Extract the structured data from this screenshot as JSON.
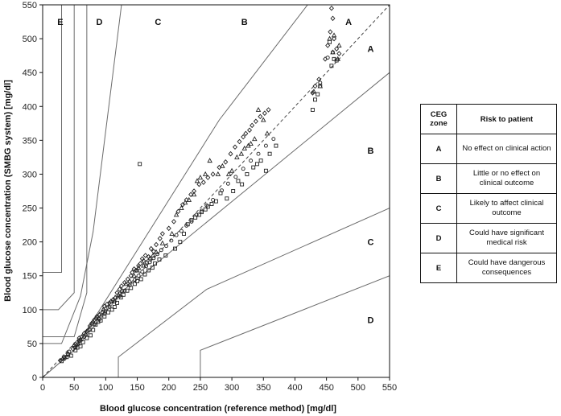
{
  "chart_data": {
    "type": "scatter",
    "title": "",
    "xlabel": "Blood glucose concentration (reference method)  [mg/dl]",
    "ylabel": "Blood glucose concentration (SMBG system) [mg/dl]",
    "xlim": [
      0,
      550
    ],
    "ylim": [
      0,
      550
    ],
    "x_ticks": [
      "0",
      "50",
      "100",
      "150",
      "200",
      "250",
      "300",
      "350",
      "400",
      "450",
      "500",
      "550"
    ],
    "y_ticks": [
      "0",
      "50",
      "100",
      "150",
      "200",
      "250",
      "300",
      "350",
      "400",
      "450",
      "500",
      "550"
    ],
    "grid": false,
    "identity_line": {
      "style": "dashed",
      "from": [
        0,
        0
      ],
      "to": [
        550,
        550
      ]
    },
    "zone_boundaries": [
      {
        "points": [
          [
            30,
            550
          ],
          [
            30,
            155
          ],
          [
            0,
            155
          ]
        ]
      },
      {
        "points": [
          [
            50,
            550
          ],
          [
            50,
            125
          ],
          [
            25,
            100
          ],
          [
            0,
            100
          ]
        ]
      },
      {
        "points": [
          [
            73,
            550
          ],
          [
            70,
            550
          ],
          [
            70,
            125
          ],
          [
            50,
            60
          ],
          [
            0,
            60
          ]
        ]
      },
      {
        "points": [
          [
            125,
            550
          ],
          [
            80,
            215
          ],
          [
            60,
            120
          ],
          [
            30,
            50
          ],
          [
            0,
            50
          ]
        ]
      },
      {
        "points": [
          [
            0,
            0
          ],
          [
            50,
            40
          ],
          [
            280,
            380
          ],
          [
            420,
            550
          ]
        ]
      },
      {
        "points": [
          [
            0,
            0
          ],
          [
            50,
            40
          ],
          [
            130,
            130
          ],
          [
            550,
            450
          ]
        ]
      },
      {
        "points": [
          [
            120,
            0
          ],
          [
            120,
            30
          ],
          [
            260,
            130
          ],
          [
            550,
            250
          ]
        ]
      },
      {
        "points": [
          [
            250,
            0
          ],
          [
            250,
            40
          ],
          [
            550,
            150
          ]
        ]
      }
    ],
    "zone_labels": [
      {
        "text": "E",
        "x": 28,
        "y": 525
      },
      {
        "text": "D",
        "x": 90,
        "y": 525
      },
      {
        "text": "C",
        "x": 183,
        "y": 525
      },
      {
        "text": "B",
        "x": 320,
        "y": 525
      },
      {
        "text": "A",
        "x": 485,
        "y": 525
      },
      {
        "text": "A",
        "x": 520,
        "y": 485
      },
      {
        "text": "B",
        "x": 520,
        "y": 335
      },
      {
        "text": "C",
        "x": 520,
        "y": 200
      },
      {
        "text": "D",
        "x": 520,
        "y": 85
      }
    ],
    "series": [
      {
        "marker": "diamond",
        "x": [
          28,
          35,
          40,
          48,
          52,
          55,
          58,
          62,
          66,
          70,
          75,
          78,
          82,
          86,
          90,
          95,
          98,
          102,
          106,
          112,
          118,
          122,
          125,
          130,
          135,
          140,
          142,
          145,
          148,
          152,
          155,
          158,
          160,
          163,
          168,
          172,
          176,
          180,
          186,
          190,
          200,
          208,
          215,
          222,
          228,
          235,
          240,
          248,
          255,
          262,
          270,
          280,
          290,
          298,
          305,
          312,
          318,
          322,
          328,
          332,
          338,
          345,
          352,
          358,
          428,
          432,
          438,
          448,
          452,
          456,
          458,
          460,
          462,
          466,
          470
        ],
        "y": [
          25,
          28,
          35,
          42,
          45,
          52,
          58,
          60,
          65,
          68,
          76,
          80,
          85,
          90,
          92,
          96,
          105,
          108,
          110,
          115,
          125,
          130,
          135,
          140,
          145,
          150,
          155,
          160,
          158,
          165,
          168,
          175,
          172,
          180,
          178,
          190,
          186,
          196,
          205,
          212,
          220,
          230,
          245,
          255,
          262,
          270,
          275,
          285,
          288,
          295,
          300,
          310,
          318,
          330,
          340,
          348,
          355,
          360,
          365,
          372,
          378,
          385,
          390,
          395,
          420,
          430,
          440,
          470,
          490,
          510,
          545,
          530,
          500,
          485,
          478
        ]
      },
      {
        "marker": "triangle",
        "x": [
          32,
          40,
          50,
          56,
          60,
          68,
          72,
          80,
          85,
          90,
          96,
          100,
          108,
          115,
          120,
          126,
          132,
          138,
          145,
          150,
          152,
          160,
          165,
          170,
          175,
          180,
          190,
          205,
          212,
          220,
          226,
          232,
          240,
          245,
          250,
          258,
          265,
          278,
          285,
          295,
          300,
          308,
          315,
          320,
          326,
          330,
          336,
          342,
          350,
          356,
          430,
          440,
          455,
          460,
          462,
          468,
          470
        ],
        "y": [
          28,
          34,
          48,
          50,
          56,
          64,
          70,
          82,
          88,
          93,
          100,
          102,
          112,
          118,
          122,
          128,
          138,
          142,
          150,
          158,
          162,
          165,
          170,
          176,
          180,
          185,
          198,
          212,
          240,
          250,
          258,
          262,
          270,
          290,
          295,
          300,
          320,
          300,
          312,
          300,
          305,
          325,
          330,
          338,
          342,
          345,
          352,
          395,
          380,
          360,
          422,
          430,
          500,
          480,
          505,
          470,
          490
        ]
      },
      {
        "marker": "square",
        "x": [
          30,
          38,
          45,
          52,
          55,
          60,
          64,
          70,
          76,
          80,
          84,
          88,
          92,
          98,
          104,
          110,
          114,
          118,
          124,
          128,
          134,
          140,
          146,
          150,
          154,
          156,
          162,
          168,
          174,
          178,
          185,
          195,
          210,
          218,
          224,
          230,
          236,
          242,
          248,
          252,
          258,
          262,
          268,
          275,
          282,
          292,
          302,
          310,
          316,
          324,
          334,
          340,
          346,
          354,
          360,
          370,
          428,
          432,
          436,
          440,
          455,
          458,
          462,
          466
        ],
        "y": [
          24,
          30,
          32,
          40,
          44,
          46,
          52,
          58,
          62,
          70,
          78,
          82,
          84,
          90,
          96,
          100,
          104,
          110,
          118,
          122,
          128,
          132,
          138,
          142,
          315,
          145,
          152,
          158,
          162,
          168,
          174,
          180,
          190,
          200,
          212,
          226,
          232,
          236,
          240,
          244,
          248,
          252,
          256,
          260,
          272,
          264,
          275,
          290,
          285,
          300,
          310,
          315,
          320,
          305,
          330,
          342,
          395,
          410,
          418,
          430,
          495,
          460,
          470,
          468
        ]
      },
      {
        "marker": "circle",
        "x": [
          34,
          42,
          50,
          58,
          66,
          74,
          82,
          90,
          98,
          106,
          114,
          122,
          130,
          138,
          146,
          152,
          158,
          164,
          170,
          176,
          182,
          188,
          196,
          204,
          212,
          220,
          228,
          236,
          244,
          252,
          260,
          270,
          284,
          294,
          306,
          318,
          330,
          342,
          354,
          366,
          440,
          452,
          460
        ],
        "y": [
          30,
          38,
          46,
          54,
          60,
          70,
          78,
          86,
          94,
          104,
          112,
          120,
          128,
          136,
          144,
          150,
          156,
          164,
          170,
          176,
          182,
          188,
          194,
          202,
          210,
          216,
          224,
          230,
          240,
          246,
          254,
          262,
          276,
          286,
          296,
          308,
          320,
          330,
          342,
          352,
          435,
          472,
          480
        ]
      }
    ]
  },
  "table": {
    "header_zone": "CEG zone",
    "header_risk": "Risk to patient",
    "rows": [
      {
        "zone": "A",
        "risk": "No effect on clinical action"
      },
      {
        "zone": "B",
        "risk": "Little or no effect on clinical outcome"
      },
      {
        "zone": "C",
        "risk": "Likely to affect clinical outcome"
      },
      {
        "zone": "D",
        "risk": "Could have significant medical risk"
      },
      {
        "zone": "E",
        "risk": "Could have dangerous consequences"
      }
    ]
  }
}
